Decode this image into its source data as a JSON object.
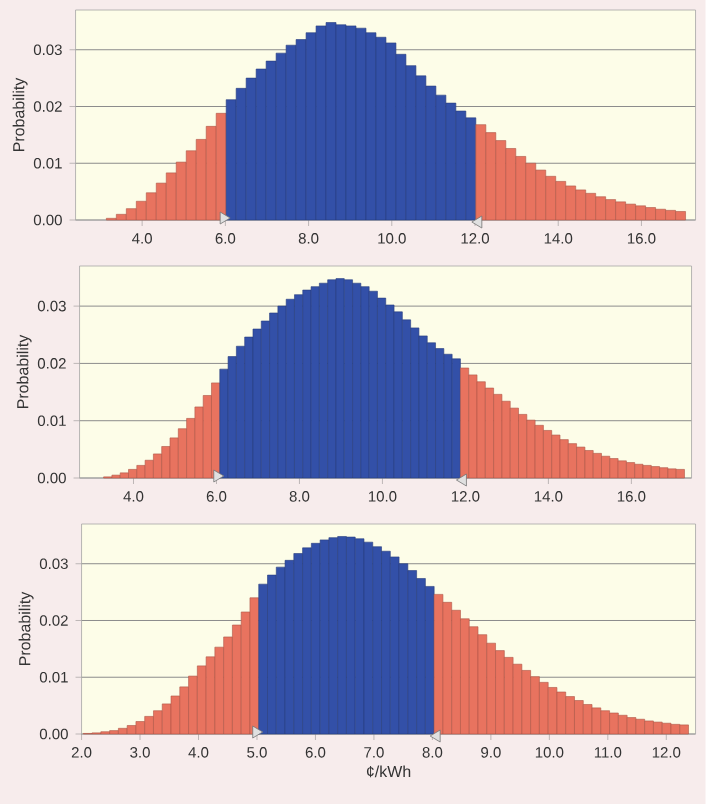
{
  "chart_data": [
    {
      "type": "histogram",
      "ylabel": "Probability",
      "bins": [
        3.14,
        3.38,
        3.62,
        3.86,
        4.1,
        4.34,
        4.58,
        4.82,
        5.06,
        5.3,
        5.54,
        5.78,
        6.02,
        6.26,
        6.5,
        6.74,
        6.98,
        7.22,
        7.46,
        7.7,
        7.94,
        8.18,
        8.42,
        8.66,
        8.9,
        9.14,
        9.38,
        9.62,
        9.86,
        10.1,
        10.34,
        10.58,
        10.82,
        11.06,
        11.3,
        11.54,
        11.78,
        12.02,
        12.26,
        12.5,
        12.74,
        12.98,
        13.22,
        13.46,
        13.7,
        13.94,
        14.18,
        14.42,
        14.66,
        14.9,
        15.14,
        15.38,
        15.62,
        15.86,
        16.1,
        16.34,
        16.58,
        16.82,
        17.06
      ],
      "values": [
        0.0003,
        0.001,
        0.002,
        0.0033,
        0.0048,
        0.0065,
        0.0083,
        0.0102,
        0.0122,
        0.0142,
        0.0165,
        0.0188,
        0.0212,
        0.0232,
        0.025,
        0.0266,
        0.028,
        0.0294,
        0.0308,
        0.0318,
        0.033,
        0.0342,
        0.0348,
        0.0344,
        0.0342,
        0.0338,
        0.033,
        0.0322,
        0.0312,
        0.0292,
        0.0272,
        0.0254,
        0.0236,
        0.022,
        0.0206,
        0.0192,
        0.018,
        0.0168,
        0.0154,
        0.014,
        0.0126,
        0.0112,
        0.01,
        0.0088,
        0.0077,
        0.0068,
        0.006,
        0.0053,
        0.0047,
        0.0041,
        0.0036,
        0.0032,
        0.0028,
        0.0025,
        0.0022,
        0.0019,
        0.0017,
        0.0015
      ],
      "colors": [
        "#e8735f",
        "#e8735f",
        "#e8735f",
        "#e8735f",
        "#e8735f",
        "#e8735f",
        "#e8735f",
        "#e8735f",
        "#e8735f",
        "#e8735f",
        "#e8735f",
        "#e8735f",
        "#3350a8",
        "#3350a8",
        "#3350a8",
        "#3350a8",
        "#3350a8",
        "#3350a8",
        "#3350a8",
        "#3350a8",
        "#3350a8",
        "#3350a8",
        "#3350a8",
        "#3350a8",
        "#3350a8",
        "#3350a8",
        "#3350a8",
        "#3350a8",
        "#3350a8",
        "#3350a8",
        "#3350a8",
        "#3350a8",
        "#3350a8",
        "#3350a8",
        "#3350a8",
        "#3350a8",
        "#3350a8",
        "#e8735f",
        "#e8735f",
        "#e8735f",
        "#e8735f",
        "#e8735f",
        "#e8735f",
        "#e8735f",
        "#e8735f",
        "#e8735f",
        "#e8735f",
        "#e8735f",
        "#e8735f",
        "#e8735f",
        "#e8735f",
        "#e8735f",
        "#e8735f",
        "#e8735f",
        "#e8735f",
        "#e8735f",
        "#e8735f",
        "#e8735f"
      ],
      "xlim": [
        2.4,
        17.3
      ],
      "ylim": [
        0,
        0.037
      ],
      "xticks": [
        {
          "value": 4,
          "label": "4.0"
        },
        {
          "value": 6,
          "label": "6.0"
        },
        {
          "value": 8,
          "label": "8.0"
        },
        {
          "value": 10,
          "label": "10.0"
        },
        {
          "value": 12,
          "label": "12.0"
        },
        {
          "value": 14,
          "label": "14.0"
        },
        {
          "value": 16,
          "label": "16.0"
        }
      ],
      "yticks": [
        {
          "value": 0,
          "label": "0.00"
        },
        {
          "value": 0.01,
          "label": "0.01"
        },
        {
          "value": 0.02,
          "label": "0.02"
        },
        {
          "value": 0.03,
          "label": "0.03"
        }
      ],
      "grid": "y"
    },
    {
      "type": "histogram",
      "ylabel": "Probability",
      "bins": [
        3.28,
        3.48,
        3.68,
        3.88,
        4.08,
        4.28,
        4.48,
        4.68,
        4.88,
        5.08,
        5.28,
        5.48,
        5.68,
        5.88,
        6.08,
        6.28,
        6.48,
        6.68,
        6.88,
        7.08,
        7.28,
        7.48,
        7.68,
        7.88,
        8.08,
        8.28,
        8.48,
        8.68,
        8.88,
        9.08,
        9.28,
        9.48,
        9.68,
        9.88,
        10.08,
        10.28,
        10.48,
        10.68,
        10.88,
        11.08,
        11.28,
        11.48,
        11.68,
        11.88,
        12.08,
        12.28,
        12.48,
        12.68,
        12.88,
        13.08,
        13.28,
        13.48,
        13.68,
        13.88,
        14.08,
        14.28,
        14.48,
        14.68,
        14.88,
        15.08,
        15.28,
        15.48,
        15.68,
        15.88,
        16.08,
        16.28,
        16.48,
        16.68,
        16.88,
        17.08,
        17.28
      ],
      "values": [
        0.0002,
        0.0005,
        0.0009,
        0.0015,
        0.0022,
        0.0031,
        0.0042,
        0.0055,
        0.007,
        0.0086,
        0.0104,
        0.0124,
        0.0144,
        0.0166,
        0.019,
        0.0212,
        0.023,
        0.0246,
        0.026,
        0.0274,
        0.0288,
        0.03,
        0.0312,
        0.032,
        0.0328,
        0.0334,
        0.034,
        0.0346,
        0.0348,
        0.0346,
        0.034,
        0.0334,
        0.0326,
        0.0314,
        0.0302,
        0.029,
        0.0276,
        0.0262,
        0.0248,
        0.0236,
        0.0226,
        0.0216,
        0.0208,
        0.0192,
        0.018,
        0.0168,
        0.0157,
        0.0146,
        0.0134,
        0.0122,
        0.0111,
        0.0101,
        0.0092,
        0.0083,
        0.0075,
        0.0067,
        0.006,
        0.0054,
        0.0048,
        0.0043,
        0.0038,
        0.0034,
        0.003,
        0.0027,
        0.0024,
        0.0022,
        0.002,
        0.0018,
        0.0016,
        0.0015
      ],
      "colors": [
        "#e8735f",
        "#e8735f",
        "#e8735f",
        "#e8735f",
        "#e8735f",
        "#e8735f",
        "#e8735f",
        "#e8735f",
        "#e8735f",
        "#e8735f",
        "#e8735f",
        "#e8735f",
        "#e8735f",
        "#e8735f",
        "#3350a8",
        "#3350a8",
        "#3350a8",
        "#3350a8",
        "#3350a8",
        "#3350a8",
        "#3350a8",
        "#3350a8",
        "#3350a8",
        "#3350a8",
        "#3350a8",
        "#3350a8",
        "#3350a8",
        "#3350a8",
        "#3350a8",
        "#3350a8",
        "#3350a8",
        "#3350a8",
        "#3350a8",
        "#3350a8",
        "#3350a8",
        "#3350a8",
        "#3350a8",
        "#3350a8",
        "#3350a8",
        "#3350a8",
        "#3350a8",
        "#3350a8",
        "#3350a8",
        "#e8735f",
        "#e8735f",
        "#e8735f",
        "#e8735f",
        "#e8735f",
        "#e8735f",
        "#e8735f",
        "#e8735f",
        "#e8735f",
        "#e8735f",
        "#e8735f",
        "#e8735f",
        "#e8735f",
        "#e8735f",
        "#e8735f",
        "#e8735f",
        "#e8735f",
        "#e8735f",
        "#e8735f",
        "#e8735f",
        "#e8735f",
        "#e8735f",
        "#e8735f",
        "#e8735f",
        "#e8735f",
        "#e8735f",
        "#e8735f"
      ],
      "xlim": [
        2.7,
        17.45
      ],
      "ylim": [
        0,
        0.037
      ],
      "xticks": [
        {
          "value": 4,
          "label": "4.0"
        },
        {
          "value": 6,
          "label": "6.0"
        },
        {
          "value": 8,
          "label": "8.0"
        },
        {
          "value": 10,
          "label": "10.0"
        },
        {
          "value": 12,
          "label": "12.0"
        },
        {
          "value": 14,
          "label": "14.0"
        },
        {
          "value": 16,
          "label": "16.0"
        }
      ],
      "yticks": [
        {
          "value": 0,
          "label": "0.00"
        },
        {
          "value": 0.01,
          "label": "0.01"
        },
        {
          "value": 0.02,
          "label": "0.02"
        },
        {
          "value": 0.03,
          "label": "0.03"
        }
      ],
      "grid": "y"
    },
    {
      "type": "histogram",
      "ylabel": "Probability",
      "xlabel": "¢/kWh",
      "bins": [
        2.03,
        2.18,
        2.33,
        2.48,
        2.63,
        2.78,
        2.93,
        3.08,
        3.23,
        3.38,
        3.53,
        3.68,
        3.83,
        3.98,
        4.13,
        4.28,
        4.43,
        4.58,
        4.73,
        4.88,
        5.03,
        5.18,
        5.33,
        5.48,
        5.63,
        5.78,
        5.93,
        6.08,
        6.23,
        6.38,
        6.53,
        6.68,
        6.83,
        6.98,
        7.13,
        7.28,
        7.43,
        7.58,
        7.73,
        7.88,
        8.03,
        8.18,
        8.33,
        8.48,
        8.63,
        8.78,
        8.93,
        9.08,
        9.23,
        9.38,
        9.53,
        9.68,
        9.83,
        9.98,
        10.13,
        10.28,
        10.43,
        10.58,
        10.73,
        10.88,
        11.03,
        11.18,
        11.33,
        11.48,
        11.63,
        11.78,
        11.93,
        12.08,
        12.23,
        12.38
      ],
      "values": [
        0.0001,
        0.0002,
        0.0004,
        0.0006,
        0.001,
        0.0015,
        0.0022,
        0.0031,
        0.0041,
        0.0053,
        0.0067,
        0.0083,
        0.0102,
        0.012,
        0.0136,
        0.0153,
        0.0171,
        0.0192,
        0.0215,
        0.024,
        0.0264,
        0.028,
        0.0294,
        0.0306,
        0.0318,
        0.0328,
        0.0336,
        0.0342,
        0.0346,
        0.0348,
        0.0347,
        0.0344,
        0.0338,
        0.033,
        0.0322,
        0.0312,
        0.03,
        0.0288,
        0.0274,
        0.026,
        0.0246,
        0.0232,
        0.0218,
        0.0203,
        0.0189,
        0.0175,
        0.016,
        0.0147,
        0.0135,
        0.0123,
        0.0112,
        0.0101,
        0.0091,
        0.0082,
        0.0074,
        0.0066,
        0.0059,
        0.0052,
        0.0046,
        0.0041,
        0.0037,
        0.0033,
        0.0029,
        0.0026,
        0.0023,
        0.0021,
        0.0019,
        0.0017,
        0.0016
      ],
      "colors": [
        "#e8735f",
        "#e8735f",
        "#e8735f",
        "#e8735f",
        "#e8735f",
        "#e8735f",
        "#e8735f",
        "#e8735f",
        "#e8735f",
        "#e8735f",
        "#e8735f",
        "#e8735f",
        "#e8735f",
        "#e8735f",
        "#e8735f",
        "#e8735f",
        "#e8735f",
        "#e8735f",
        "#e8735f",
        "#e8735f",
        "#3350a8",
        "#3350a8",
        "#3350a8",
        "#3350a8",
        "#3350a8",
        "#3350a8",
        "#3350a8",
        "#3350a8",
        "#3350a8",
        "#3350a8",
        "#3350a8",
        "#3350a8",
        "#3350a8",
        "#3350a8",
        "#3350a8",
        "#3350a8",
        "#3350a8",
        "#3350a8",
        "#3350a8",
        "#3350a8",
        "#e8735f",
        "#e8735f",
        "#e8735f",
        "#e8735f",
        "#e8735f",
        "#e8735f",
        "#e8735f",
        "#e8735f",
        "#e8735f",
        "#e8735f",
        "#e8735f",
        "#e8735f",
        "#e8735f",
        "#e8735f",
        "#e8735f",
        "#e8735f",
        "#e8735f",
        "#e8735f",
        "#e8735f",
        "#e8735f",
        "#e8735f",
        "#e8735f",
        "#e8735f",
        "#e8735f",
        "#e8735f",
        "#e8735f",
        "#e8735f",
        "#e8735f",
        "#e8735f"
      ],
      "xlim": [
        2.0,
        12.5
      ],
      "ylim": [
        0,
        0.037
      ],
      "xticks": [
        {
          "value": 2,
          "label": "2.0"
        },
        {
          "value": 3,
          "label": "3.0"
        },
        {
          "value": 4,
          "label": "4.0"
        },
        {
          "value": 5,
          "label": "5.0"
        },
        {
          "value": 6,
          "label": "6.0"
        },
        {
          "value": 7,
          "label": "7.0"
        },
        {
          "value": 8,
          "label": "8.0"
        },
        {
          "value": 9,
          "label": "9.0"
        },
        {
          "value": 10,
          "label": "10.0"
        },
        {
          "value": 11,
          "label": "11.0"
        },
        {
          "value": 12,
          "label": "12.0"
        }
      ],
      "yticks": [
        {
          "value": 0,
          "label": "0.00"
        },
        {
          "value": 0.01,
          "label": "0.01"
        },
        {
          "value": 0.02,
          "label": "0.02"
        },
        {
          "value": 0.03,
          "label": "0.03"
        }
      ],
      "grid": "y"
    }
  ]
}
